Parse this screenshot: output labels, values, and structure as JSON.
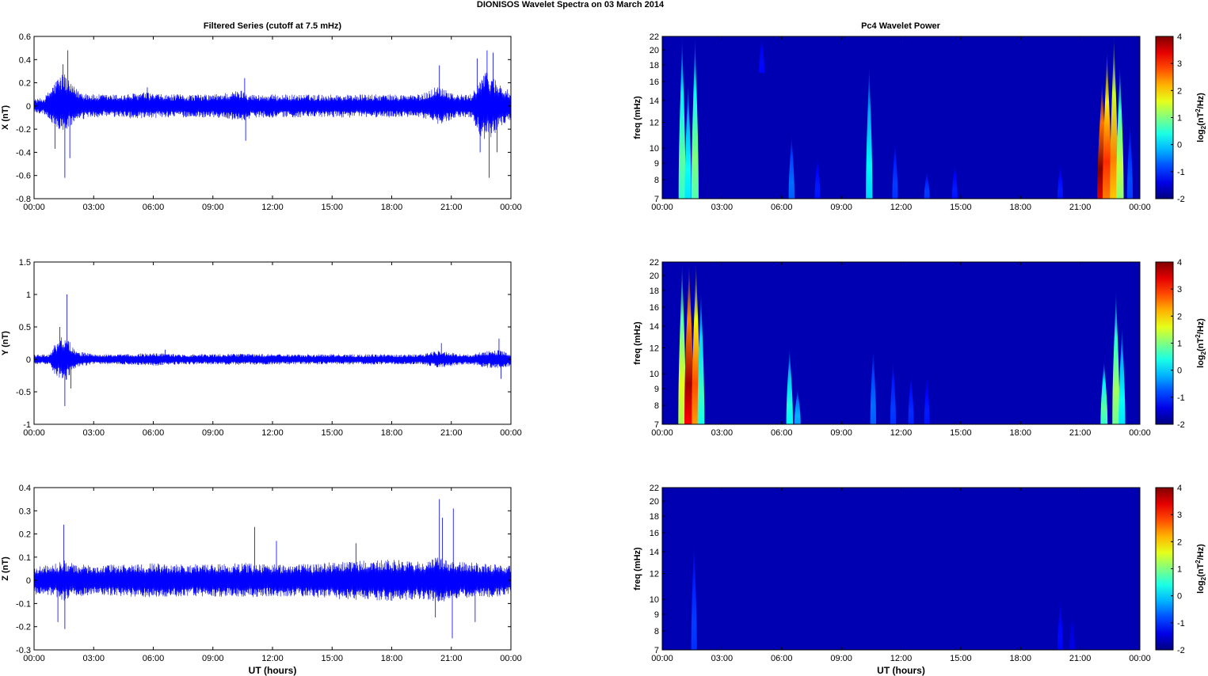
{
  "figure": {
    "title": "DIONISOS Wavelet Spectra on 03 March     2014",
    "left_column_title": "Filtered Series (cutoff at 7.5 mHz)",
    "right_column_title": "Pc4 Wavelet Power",
    "xlabel": "UT (hours)"
  },
  "colors": {
    "series_line": "#0000ff",
    "spectrum_background": "#00008f"
  },
  "chart_data": [
    {
      "type": "line",
      "name": "x-series",
      "ylabel": "X (nT)",
      "xlim": [
        0,
        24
      ],
      "ylim": [
        -0.8,
        0.6
      ],
      "xticks": [
        "00:00",
        "03:00",
        "06:00",
        "09:00",
        "12:00",
        "15:00",
        "18:00",
        "21:00",
        "00:00"
      ],
      "yticks": [
        "-0.8",
        "-0.6",
        "-0.4",
        "-0.2",
        "0",
        "0.2",
        "0.4",
        "0.6"
      ],
      "envelope": {
        "x": [
          0,
          0.5,
          1.0,
          1.2,
          1.5,
          1.8,
          2.2,
          3,
          4.5,
          5.5,
          6.5,
          7.5,
          9,
          10.5,
          11,
          12,
          13.5,
          15,
          16.5,
          18,
          19.5,
          20.3,
          20.7,
          21.2,
          22,
          22.6,
          23,
          23.4,
          24
        ],
        "upper": [
          0.06,
          0.07,
          0.2,
          0.25,
          0.3,
          0.2,
          0.14,
          0.1,
          0.1,
          0.12,
          0.1,
          0.1,
          0.1,
          0.14,
          0.1,
          0.1,
          0.1,
          0.1,
          0.1,
          0.1,
          0.1,
          0.18,
          0.16,
          0.1,
          0.1,
          0.3,
          0.28,
          0.2,
          0.12
        ],
        "lower": [
          -0.06,
          -0.07,
          -0.17,
          -0.2,
          -0.24,
          -0.18,
          -0.13,
          -0.1,
          -0.1,
          -0.12,
          -0.1,
          -0.1,
          -0.1,
          -0.13,
          -0.1,
          -0.1,
          -0.1,
          -0.1,
          -0.1,
          -0.1,
          -0.1,
          -0.16,
          -0.14,
          -0.1,
          -0.1,
          -0.3,
          -0.27,
          -0.2,
          -0.12
        ]
      },
      "spikes": [
        {
          "x": 1.05,
          "y": -0.37
        },
        {
          "x": 1.15,
          "y": 0.21
        },
        {
          "x": 1.45,
          "y": 0.36
        },
        {
          "x": 1.55,
          "y": -0.62
        },
        {
          "x": 1.7,
          "y": 0.48
        },
        {
          "x": 1.8,
          "y": -0.45
        },
        {
          "x": 5.7,
          "y": 0.16
        },
        {
          "x": 10.6,
          "y": 0.24
        },
        {
          "x": 10.65,
          "y": -0.3
        },
        {
          "x": 20.4,
          "y": 0.35
        },
        {
          "x": 22.3,
          "y": 0.41
        },
        {
          "x": 22.45,
          "y": -0.4
        },
        {
          "x": 22.8,
          "y": 0.48
        },
        {
          "x": 22.9,
          "y": -0.62
        },
        {
          "x": 23.1,
          "y": 0.46
        },
        {
          "x": 23.3,
          "y": -0.4
        }
      ]
    },
    {
      "type": "line",
      "name": "y-series",
      "ylabel": "Y (nT)",
      "xlim": [
        0,
        24
      ],
      "ylim": [
        -1,
        1.5
      ],
      "xticks": [
        "00:00",
        "03:00",
        "06:00",
        "09:00",
        "12:00",
        "15:00",
        "18:00",
        "21:00",
        "00:00"
      ],
      "yticks": [
        "-1",
        "-0.5",
        "0",
        "0.5",
        "1",
        "1.5"
      ],
      "envelope": {
        "x": [
          0,
          0.8,
          1.0,
          1.3,
          1.6,
          1.9,
          2.3,
          3,
          4.5,
          6,
          7.5,
          9,
          10.5,
          12,
          13.5,
          15,
          16.5,
          18,
          19.5,
          20.3,
          20.7,
          21.3,
          22,
          22.6,
          23.3,
          24
        ],
        "upper": [
          0.07,
          0.08,
          0.22,
          0.35,
          0.4,
          0.2,
          0.12,
          0.08,
          0.08,
          0.1,
          0.08,
          0.08,
          0.09,
          0.08,
          0.08,
          0.08,
          0.08,
          0.08,
          0.08,
          0.14,
          0.12,
          0.09,
          0.08,
          0.12,
          0.15,
          0.1
        ],
        "lower": [
          -0.07,
          -0.08,
          -0.22,
          -0.3,
          -0.35,
          -0.18,
          -0.12,
          -0.08,
          -0.08,
          -0.1,
          -0.08,
          -0.08,
          -0.09,
          -0.08,
          -0.08,
          -0.08,
          -0.08,
          -0.08,
          -0.08,
          -0.13,
          -0.12,
          -0.09,
          -0.08,
          -0.12,
          -0.15,
          -0.1
        ]
      },
      "spikes": [
        {
          "x": 1.3,
          "y": 0.5
        },
        {
          "x": 1.55,
          "y": -0.72
        },
        {
          "x": 1.65,
          "y": 1.0
        },
        {
          "x": 1.85,
          "y": -0.45
        },
        {
          "x": 6.6,
          "y": 0.15
        },
        {
          "x": 20.5,
          "y": 0.25
        },
        {
          "x": 23.4,
          "y": 0.32
        },
        {
          "x": 23.5,
          "y": -0.3
        }
      ]
    },
    {
      "type": "line",
      "name": "z-series",
      "ylabel": "Z (nT)",
      "xlim": [
        0,
        24
      ],
      "ylim": [
        -0.3,
        0.4
      ],
      "xticks": [
        "00:00",
        "03:00",
        "06:00",
        "09:00",
        "12:00",
        "15:00",
        "18:00",
        "21:00",
        "00:00"
      ],
      "yticks": [
        "-0.3",
        "-0.2",
        "-0.1",
        "0",
        "0.1",
        "0.2",
        "0.3",
        "0.4"
      ],
      "xlabel": "UT (hours)",
      "envelope": {
        "x": [
          0,
          1,
          1.5,
          2,
          3,
          4.5,
          6,
          7.5,
          9,
          10.5,
          12,
          13.5,
          15,
          16.5,
          18,
          19.5,
          20.3,
          20.7,
          21.3,
          22.5,
          23.5,
          24
        ],
        "upper": [
          0.06,
          0.07,
          0.09,
          0.07,
          0.065,
          0.07,
          0.075,
          0.07,
          0.07,
          0.075,
          0.07,
          0.07,
          0.08,
          0.085,
          0.09,
          0.08,
          0.1,
          0.09,
          0.08,
          0.075,
          0.07,
          0.065
        ],
        "lower": [
          -0.06,
          -0.07,
          -0.09,
          -0.07,
          -0.065,
          -0.07,
          -0.075,
          -0.07,
          -0.07,
          -0.075,
          -0.07,
          -0.07,
          -0.08,
          -0.085,
          -0.09,
          -0.08,
          -0.1,
          -0.09,
          -0.08,
          -0.075,
          -0.07,
          -0.065
        ]
      },
      "spikes": [
        {
          "x": 1.2,
          "y": -0.18
        },
        {
          "x": 1.5,
          "y": 0.24
        },
        {
          "x": 1.55,
          "y": -0.21
        },
        {
          "x": 11.1,
          "y": 0.23
        },
        {
          "x": 12.2,
          "y": 0.17
        },
        {
          "x": 16.2,
          "y": 0.16
        },
        {
          "x": 20.4,
          "y": 0.35
        },
        {
          "x": 20.55,
          "y": 0.27
        },
        {
          "x": 21.1,
          "y": 0.31
        },
        {
          "x": 21.05,
          "y": -0.25
        },
        {
          "x": 20.2,
          "y": -0.16
        },
        {
          "x": 22.2,
          "y": -0.18
        }
      ]
    },
    {
      "type": "heatmap",
      "name": "x-spectrum",
      "ylabel": "freq (mHz)",
      "colorbar_label": "log2(nT2/Hz)",
      "colorbar_label_parts": {
        "base": "log",
        "sub": "2",
        "open": "(nT",
        "sup": "2",
        "close": "/Hz)"
      },
      "xlim": [
        0,
        24
      ],
      "ylim": [
        7,
        22
      ],
      "yscale": "log",
      "xticks": [
        "00:00",
        "03:00",
        "06:00",
        "09:00",
        "12:00",
        "15:00",
        "18:00",
        "21:00",
        "00:00"
      ],
      "yticks": [
        7,
        8,
        9,
        10,
        12,
        14,
        16,
        18,
        20,
        22
      ],
      "clim": [
        -2,
        4
      ],
      "cticks": [
        -2,
        -1,
        0,
        1,
        2,
        3,
        4
      ],
      "background_level": -1.7,
      "features": [
        {
          "x": 1.0,
          "fmin": 7,
          "fmax": 22,
          "peak": 0.8
        },
        {
          "x": 1.3,
          "fmin": 7,
          "fmax": 16,
          "peak": 0.3
        },
        {
          "x": 1.65,
          "fmin": 7,
          "fmax": 22,
          "peak": 1.0
        },
        {
          "x": 5.0,
          "fmin": 17,
          "fmax": 22,
          "peak": -1.2
        },
        {
          "x": 6.5,
          "fmin": 7,
          "fmax": 11,
          "peak": -0.6
        },
        {
          "x": 7.8,
          "fmin": 7,
          "fmax": 9.5,
          "peak": -1.1
        },
        {
          "x": 10.4,
          "fmin": 7,
          "fmax": 18,
          "peak": 0.2
        },
        {
          "x": 11.7,
          "fmin": 7,
          "fmax": 10.5,
          "peak": -0.9
        },
        {
          "x": 13.3,
          "fmin": 7,
          "fmax": 8.5,
          "peak": -0.9
        },
        {
          "x": 14.7,
          "fmin": 7,
          "fmax": 9,
          "peak": -1.1
        },
        {
          "x": 20.0,
          "fmin": 7,
          "fmax": 9,
          "peak": -1.1
        },
        {
          "x": 22.1,
          "fmin": 7,
          "fmax": 16,
          "peak": 4.0
        },
        {
          "x": 22.35,
          "fmin": 7,
          "fmax": 20,
          "peak": 3.0
        },
        {
          "x": 22.7,
          "fmin": 7,
          "fmax": 22,
          "peak": 2.5
        },
        {
          "x": 23.0,
          "fmin": 7,
          "fmax": 18,
          "peak": 1.4
        },
        {
          "x": 23.5,
          "fmin": 7,
          "fmax": 12,
          "peak": -0.8
        }
      ]
    },
    {
      "type": "heatmap",
      "name": "y-spectrum",
      "ylabel": "freq (mHz)",
      "colorbar_label": "log2(nT2/Hz)",
      "colorbar_label_parts": {
        "base": "log",
        "sub": "2",
        "open": "(nT",
        "sup": "2",
        "close": "/Hz)"
      },
      "xlim": [
        0,
        24
      ],
      "ylim": [
        7,
        22
      ],
      "yscale": "log",
      "xticks": [
        "00:00",
        "03:00",
        "06:00",
        "09:00",
        "12:00",
        "15:00",
        "18:00",
        "21:00",
        "00:00"
      ],
      "yticks": [
        7,
        8,
        9,
        10,
        12,
        14,
        16,
        18,
        20,
        22
      ],
      "clim": [
        -2,
        4
      ],
      "cticks": [
        -2,
        -1,
        0,
        1,
        2,
        3,
        4
      ],
      "background_level": -1.7,
      "features": [
        {
          "x": 1.0,
          "fmin": 7,
          "fmax": 22,
          "peak": 1.6
        },
        {
          "x": 1.35,
          "fmin": 7,
          "fmax": 22,
          "peak": 3.8
        },
        {
          "x": 1.7,
          "fmin": 7,
          "fmax": 22,
          "peak": 2.8
        },
        {
          "x": 1.95,
          "fmin": 7,
          "fmax": 18,
          "peak": 0.6
        },
        {
          "x": 6.4,
          "fmin": 7,
          "fmax": 12,
          "peak": 0.4
        },
        {
          "x": 6.8,
          "fmin": 7,
          "fmax": 9,
          "peak": -0.2
        },
        {
          "x": 10.6,
          "fmin": 7,
          "fmax": 12,
          "peak": -0.6
        },
        {
          "x": 11.6,
          "fmin": 7,
          "fmax": 11,
          "peak": -0.9
        },
        {
          "x": 12.5,
          "fmin": 7,
          "fmax": 10,
          "peak": -1.0
        },
        {
          "x": 13.3,
          "fmin": 7,
          "fmax": 10,
          "peak": -1.1
        },
        {
          "x": 22.2,
          "fmin": 7,
          "fmax": 11,
          "peak": 0.8
        },
        {
          "x": 22.8,
          "fmin": 7,
          "fmax": 18,
          "peak": 1.2
        },
        {
          "x": 23.1,
          "fmin": 7,
          "fmax": 14,
          "peak": 0.3
        }
      ]
    },
    {
      "type": "heatmap",
      "name": "z-spectrum",
      "ylabel": "freq (mHz)",
      "xlabel": "UT (hours)",
      "colorbar_label": "log2(nT2/Hz)",
      "colorbar_label_parts": {
        "base": "log",
        "sub": "2",
        "open": "(nT",
        "sup": "2",
        "close": "/Hz)"
      },
      "xlim": [
        0,
        24
      ],
      "ylim": [
        7,
        22
      ],
      "yscale": "log",
      "xticks": [
        "00:00",
        "03:00",
        "06:00",
        "09:00",
        "12:00",
        "15:00",
        "18:00",
        "21:00",
        "00:00"
      ],
      "yticks": [
        7,
        8,
        9,
        10,
        12,
        14,
        16,
        18,
        20,
        22
      ],
      "clim": [
        -2,
        4
      ],
      "cticks": [
        -2,
        -1,
        0,
        1,
        2,
        3,
        4
      ],
      "background_level": -1.7,
      "features": [
        {
          "x": 1.6,
          "fmin": 7,
          "fmax": 15,
          "peak": -0.9
        },
        {
          "x": 20.0,
          "fmin": 7,
          "fmax": 10,
          "peak": -1.2
        },
        {
          "x": 20.6,
          "fmin": 7,
          "fmax": 9,
          "peak": -1.4
        }
      ]
    }
  ]
}
